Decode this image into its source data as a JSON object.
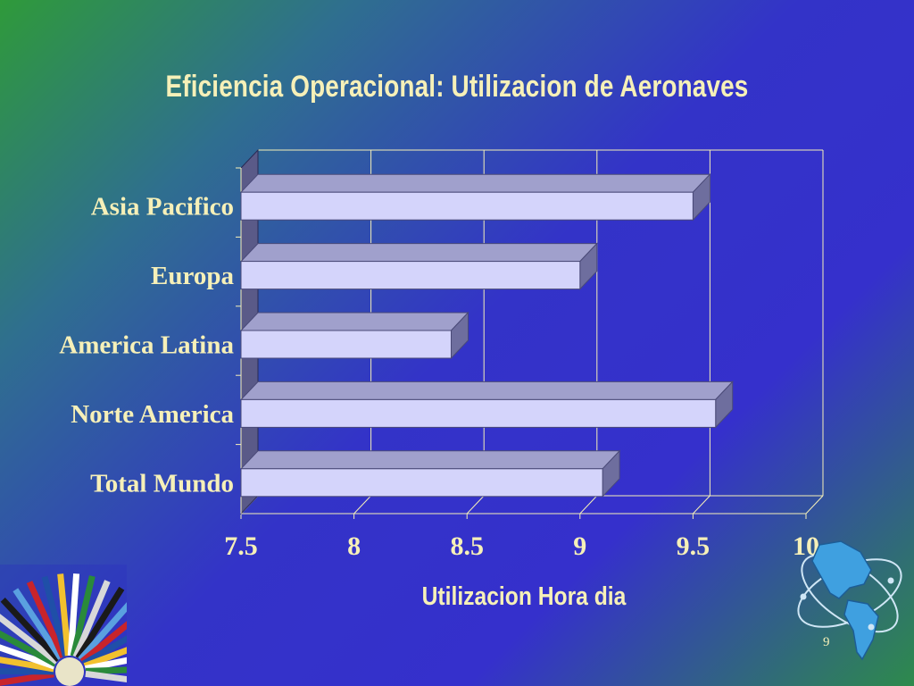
{
  "slide": {
    "title": "Eficiencia Operacional: Utilizacion de Aeronaves",
    "page_number": "9"
  },
  "colors": {
    "title_text": "#f6f0b8",
    "bar_front": "#d4d4fb",
    "bar_top": "#a0a0cc",
    "bar_side": "#6e6e9e",
    "plot_lines": "#f6f0b8",
    "background_center": "#3333c8",
    "background_corners": "#2f9a3a"
  },
  "icons": [
    "oas-flags-logo",
    "americas-globe-logo"
  ],
  "chart_data": {
    "type": "bar",
    "orientation": "horizontal",
    "style": "3d",
    "title": "Eficiencia Operacional: Utilizacion de Aeronaves",
    "xlabel": "Utilizacion Hora dia",
    "ylabel": "",
    "categories": [
      "Asia Pacifico",
      "Europa",
      "America Latina",
      "Norte America",
      "Total Mundo"
    ],
    "values": [
      9.5,
      9.0,
      8.43,
      9.6,
      9.1
    ],
    "xlim": [
      7.5,
      10
    ],
    "xticks": [
      7.5,
      8,
      8.5,
      9,
      9.5,
      10
    ],
    "tick_labels": [
      "7.5",
      "8",
      "8.5",
      "9",
      "9.5",
      "10"
    ],
    "grid": true,
    "legend": "none"
  }
}
